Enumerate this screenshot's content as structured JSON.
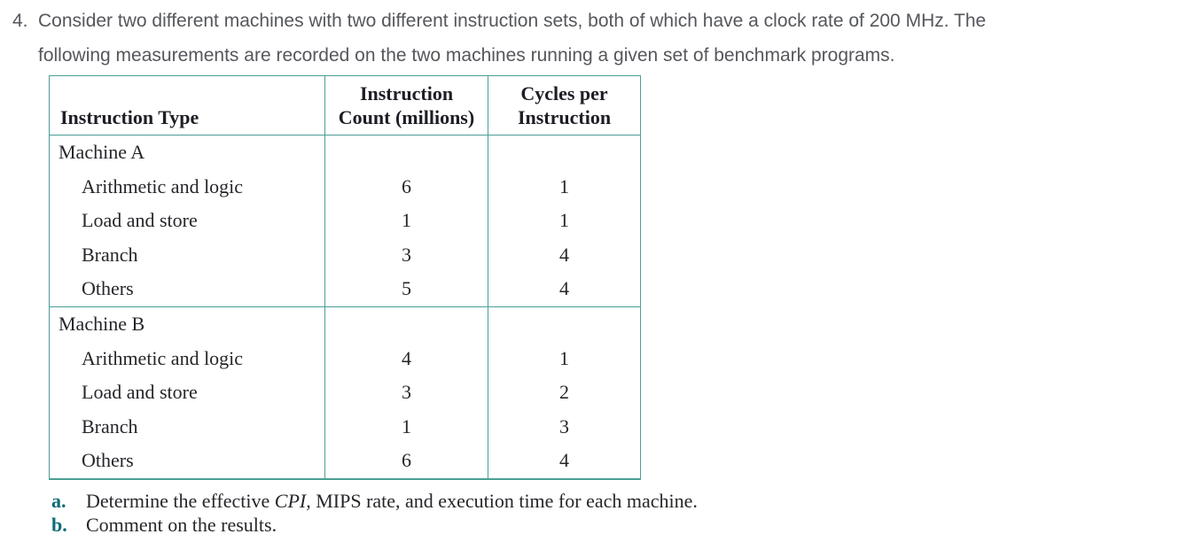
{
  "problem": {
    "number": "4.",
    "line1": "Consider two different machines with two different instruction sets, both of which have a clock rate of 200 MHz. The",
    "line2": "following measurements are recorded on the two machines running a given set of benchmark programs."
  },
  "table": {
    "headers": {
      "col1": "Instruction Type",
      "col2_line1": "Instruction",
      "col2_line2": "Count (millions)",
      "col3_line1": "Cycles per",
      "col3_line2": "Instruction"
    },
    "sections": [
      {
        "name": "Machine A",
        "rows": [
          {
            "label": "Arithmetic and logic",
            "count": "6",
            "cpi": "1"
          },
          {
            "label": "Load and store",
            "count": "1",
            "cpi": "1"
          },
          {
            "label": "Branch",
            "count": "3",
            "cpi": "4"
          },
          {
            "label": "Others",
            "count": "5",
            "cpi": "4"
          }
        ]
      },
      {
        "name": "Machine B",
        "rows": [
          {
            "label": "Arithmetic and logic",
            "count": "4",
            "cpi": "1"
          },
          {
            "label": "Load and store",
            "count": "3",
            "cpi": "2"
          },
          {
            "label": "Branch",
            "count": "1",
            "cpi": "3"
          },
          {
            "label": "Others",
            "count": "6",
            "cpi": "4"
          }
        ]
      }
    ]
  },
  "questions": [
    {
      "marker": "a.",
      "pre": "Determine the effective ",
      "italic": "CPI",
      "post": ", MIPS rate, and execution time for each machine."
    },
    {
      "marker": "b.",
      "pre": "Comment on the results.",
      "italic": "",
      "post": ""
    }
  ],
  "colors": {
    "table_border": "#4a9e95",
    "question_marker": "#0d6b76",
    "paragraph_text": "#55575c",
    "table_text": "#26262b",
    "background": "#ffffff"
  }
}
